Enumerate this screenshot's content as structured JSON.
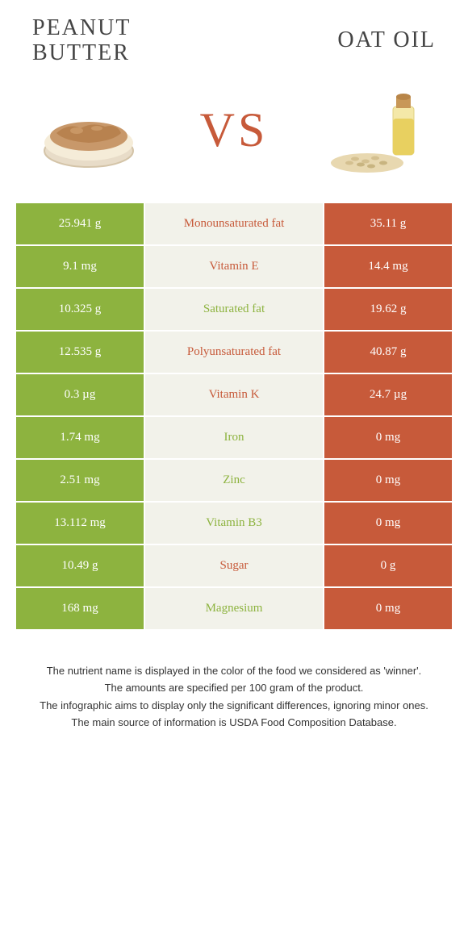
{
  "header": {
    "left_title": "Peanut butter",
    "right_title": "Oat oil",
    "vs_label": "VS"
  },
  "colors": {
    "left": "#8db33f",
    "right": "#c75a3a",
    "mid_bg": "#f2f2ea",
    "text": "#333333"
  },
  "rows": [
    {
      "left": "25.941 g",
      "nutrient": "Monounsaturated fat",
      "right": "35.11 g",
      "winner": "right"
    },
    {
      "left": "9.1 mg",
      "nutrient": "Vitamin E",
      "right": "14.4 mg",
      "winner": "right"
    },
    {
      "left": "10.325 g",
      "nutrient": "Saturated fat",
      "right": "19.62 g",
      "winner": "left"
    },
    {
      "left": "12.535 g",
      "nutrient": "Polyunsaturated fat",
      "right": "40.87 g",
      "winner": "right"
    },
    {
      "left": "0.3 µg",
      "nutrient": "Vitamin K",
      "right": "24.7 µg",
      "winner": "right"
    },
    {
      "left": "1.74 mg",
      "nutrient": "Iron",
      "right": "0 mg",
      "winner": "left"
    },
    {
      "left": "2.51 mg",
      "nutrient": "Zinc",
      "right": "0 mg",
      "winner": "left"
    },
    {
      "left": "13.112 mg",
      "nutrient": "Vitamin B3",
      "right": "0 mg",
      "winner": "left"
    },
    {
      "left": "10.49 g",
      "nutrient": "Sugar",
      "right": "0 g",
      "winner": "right"
    },
    {
      "left": "168 mg",
      "nutrient": "Magnesium",
      "right": "0 mg",
      "winner": "left"
    }
  ],
  "footnotes": [
    "The nutrient name is displayed in the color of the food we considered as 'winner'.",
    "The amounts are specified per 100 gram of the product.",
    "The infographic aims to display only the significant differences, ignoring minor ones.",
    "The main source of information is USDA Food Composition Database."
  ]
}
